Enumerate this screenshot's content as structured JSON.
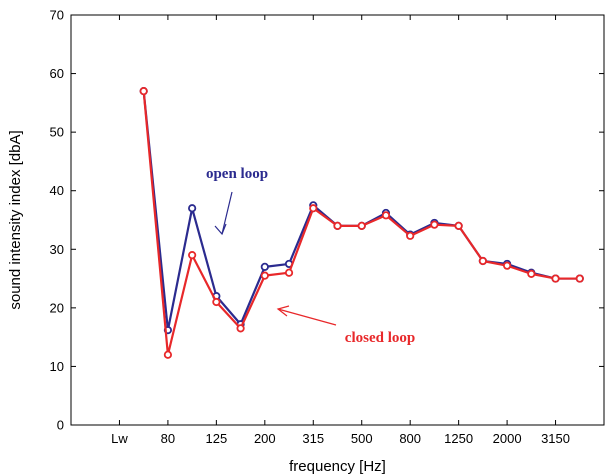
{
  "chart_data": {
    "type": "line",
    "xlabel": "frequency [Hz]",
    "ylabel": "sound intensity index [dbA]",
    "ylim": [
      0,
      70
    ],
    "y_ticks": [
      0,
      10,
      20,
      30,
      40,
      50,
      60,
      70
    ],
    "x_ticks": [
      {
        "pos": 2,
        "label": "Lw"
      },
      {
        "pos": 4,
        "label": "80"
      },
      {
        "pos": 6,
        "label": "125"
      },
      {
        "pos": 8,
        "label": "200"
      },
      {
        "pos": 10,
        "label": "315"
      },
      {
        "pos": 12,
        "label": "500"
      },
      {
        "pos": 14,
        "label": "800"
      },
      {
        "pos": 16,
        "label": "1250"
      },
      {
        "pos": 18,
        "label": "2000"
      },
      {
        "pos": 20,
        "label": "3150"
      }
    ],
    "xlim": [
      0,
      22
    ],
    "x": [
      3,
      4,
      5,
      6,
      7,
      8,
      9,
      10,
      11,
      12,
      13,
      14,
      15,
      16,
      17,
      18,
      19,
      20,
      21
    ],
    "grid": false,
    "series": [
      {
        "name": "open loop",
        "color": "#2b2b8f",
        "values": [
          57,
          16.2,
          37,
          22,
          17.2,
          27,
          27.5,
          37.5,
          34,
          34,
          36.2,
          32.5,
          34.5,
          34,
          28,
          27.5,
          26,
          25,
          25
        ]
      },
      {
        "name": "closed loop",
        "color": "#e8282a",
        "values": [
          57,
          12,
          29,
          21,
          16.5,
          25.5,
          26,
          37,
          34,
          34,
          35.8,
          32.3,
          34.2,
          34,
          28,
          27.2,
          25.8,
          25,
          25
        ]
      }
    ],
    "annotations": [
      {
        "text": "open loop",
        "series": 0
      },
      {
        "text": "closed loop",
        "series": 1
      }
    ]
  }
}
